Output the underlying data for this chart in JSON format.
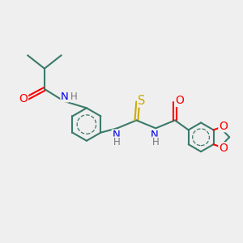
{
  "background_color": "#efefef",
  "bond_color": "#3a7a6a",
  "atom_colors": {
    "O": "#ff0000",
    "N": "#0000ee",
    "S": "#ccaa00",
    "H": "#777777",
    "C": "#3a7a6a"
  },
  "figsize": [
    3.0,
    3.0
  ],
  "dpi": 100
}
